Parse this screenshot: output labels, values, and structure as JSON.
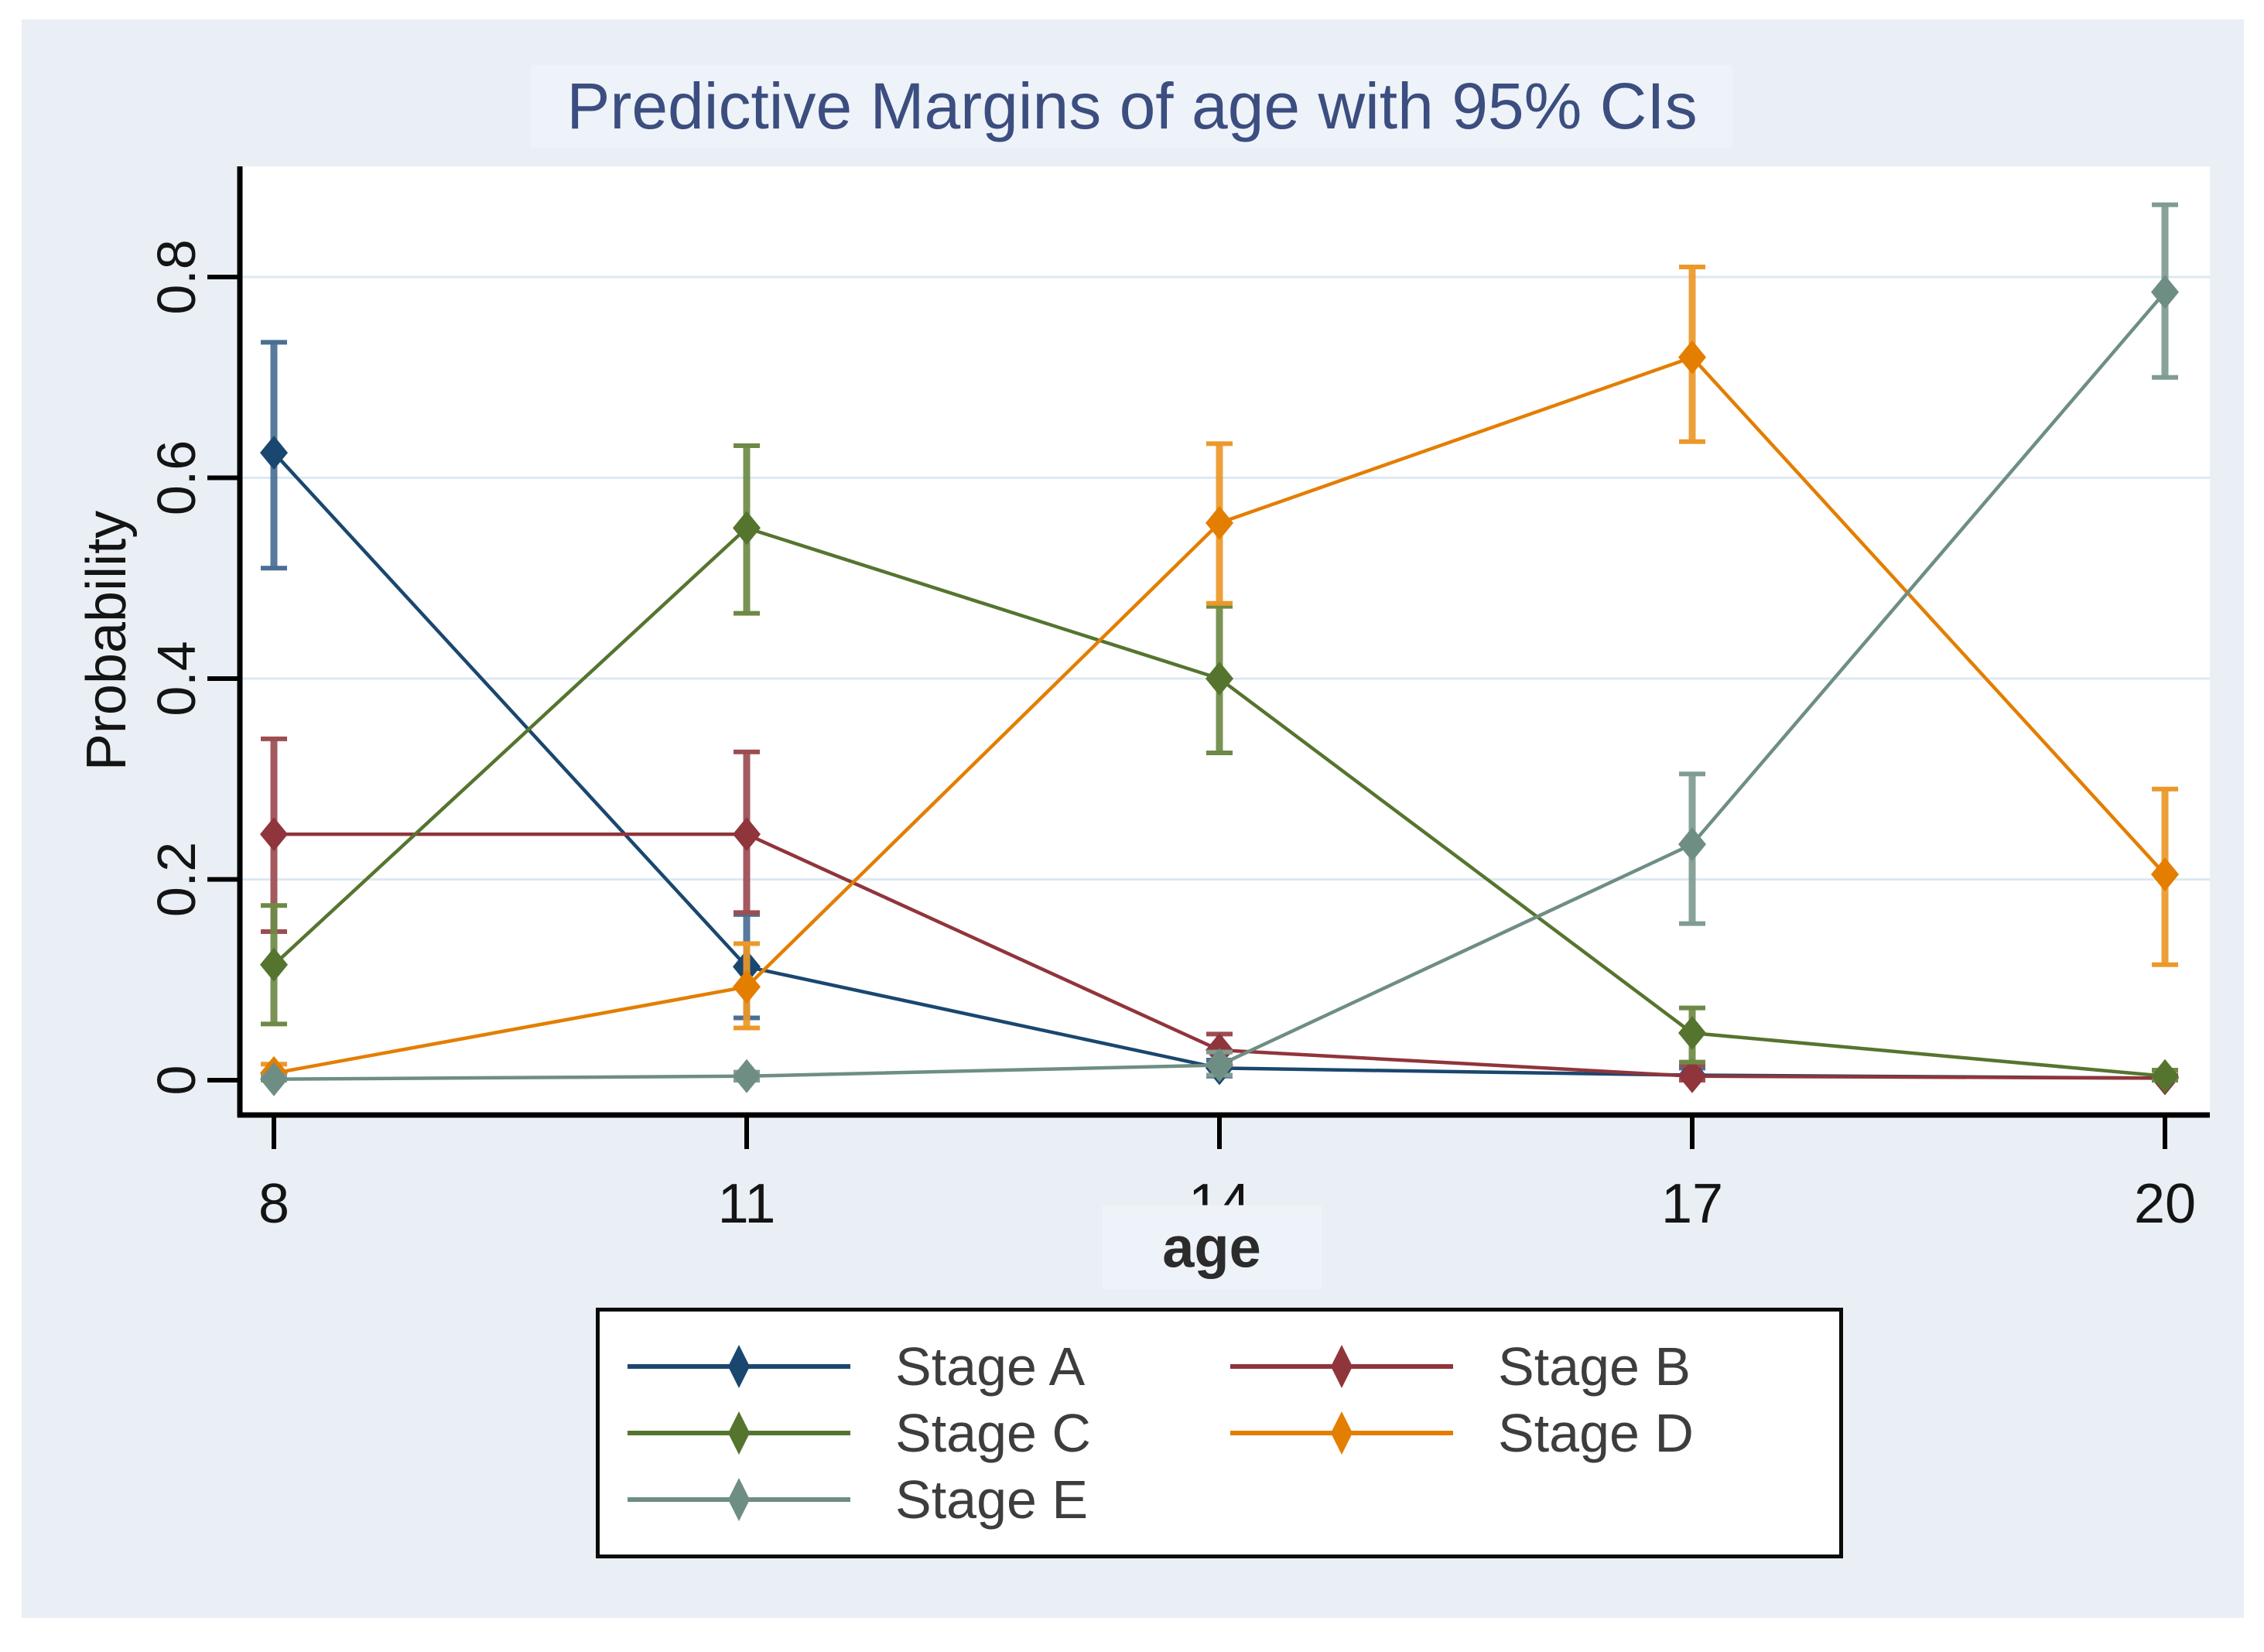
{
  "figure": {
    "canvas_bg": "#ffffff",
    "panel_bg": "#e9eff4",
    "plot_bg": "#ffffff",
    "gridline_color": "#dde9f2",
    "axis_color": "#000000",
    "tick_label_color": "#141414",
    "title_color": "#3c4d7f",
    "title_highlight": "#edf3f9",
    "xlabel_highlight": "#eef3f9",
    "legend_text_color": "#3d3d3d",
    "legend_border_color": "#0a0a0a"
  },
  "chart_data": {
    "type": "line",
    "title": "Predictive Margins of age with 95% CIs",
    "xlabel": "age",
    "ylabel": "Probability",
    "x": [
      8,
      11,
      14,
      17,
      20
    ],
    "x_tick_labels": [
      "8",
      "11",
      "14",
      "17",
      "20"
    ],
    "y_ticks": [
      0,
      0.2,
      0.4,
      0.6,
      0.8
    ],
    "y_tick_labels": [
      "0",
      "0.2",
      "0.4",
      "0.6",
      "0.8"
    ],
    "xlim": [
      8,
      20
    ],
    "ylim": [
      0,
      0.9
    ],
    "grid": "horizontal-major",
    "error_bars": "95% confidence intervals",
    "legend_position": "bottom-center",
    "marker": "diamond",
    "series": [
      {
        "name": "Stage A",
        "color": "#1a476f",
        "ci_color": "#4a6f94",
        "values": [
          0.625,
          0.113,
          0.012,
          0.005,
          0.002
        ],
        "ci_low": [
          0.51,
          0.062,
          0.004,
          0.0,
          0.0
        ],
        "ci_high": [
          0.735,
          0.165,
          0.02,
          0.012,
          0.005
        ]
      },
      {
        "name": "Stage B",
        "color": "#90353b",
        "ci_color": "#9d4c52",
        "values": [
          0.245,
          0.245,
          0.03,
          0.004,
          0.002
        ],
        "ci_low": [
          0.148,
          0.167,
          0.015,
          0.0,
          0.0
        ],
        "ci_high": [
          0.34,
          0.327,
          0.046,
          0.015,
          0.005
        ]
      },
      {
        "name": "Stage C",
        "color": "#55752f",
        "ci_color": "#6d8a45",
        "values": [
          0.115,
          0.55,
          0.4,
          0.047,
          0.004
        ],
        "ci_low": [
          0.056,
          0.465,
          0.326,
          0.018,
          0.0
        ],
        "ci_high": [
          0.174,
          0.632,
          0.472,
          0.072,
          0.01
        ]
      },
      {
        "name": "Stage D",
        "color": "#e37e00",
        "ci_color": "#ec9829",
        "values": [
          0.007,
          0.093,
          0.555,
          0.72,
          0.205
        ],
        "ci_low": [
          0.0,
          0.052,
          0.475,
          0.636,
          0.115
        ],
        "ci_high": [
          0.016,
          0.136,
          0.634,
          0.81,
          0.29
        ]
      },
      {
        "name": "Stage E",
        "color": "#6e8e84",
        "ci_color": "#7f9c92",
        "values": [
          0.001,
          0.004,
          0.015,
          0.235,
          0.785
        ],
        "ci_low": [
          0.0,
          0.0,
          0.005,
          0.156,
          0.7
        ],
        "ci_high": [
          0.004,
          0.008,
          0.028,
          0.305,
          0.872
        ]
      }
    ]
  }
}
